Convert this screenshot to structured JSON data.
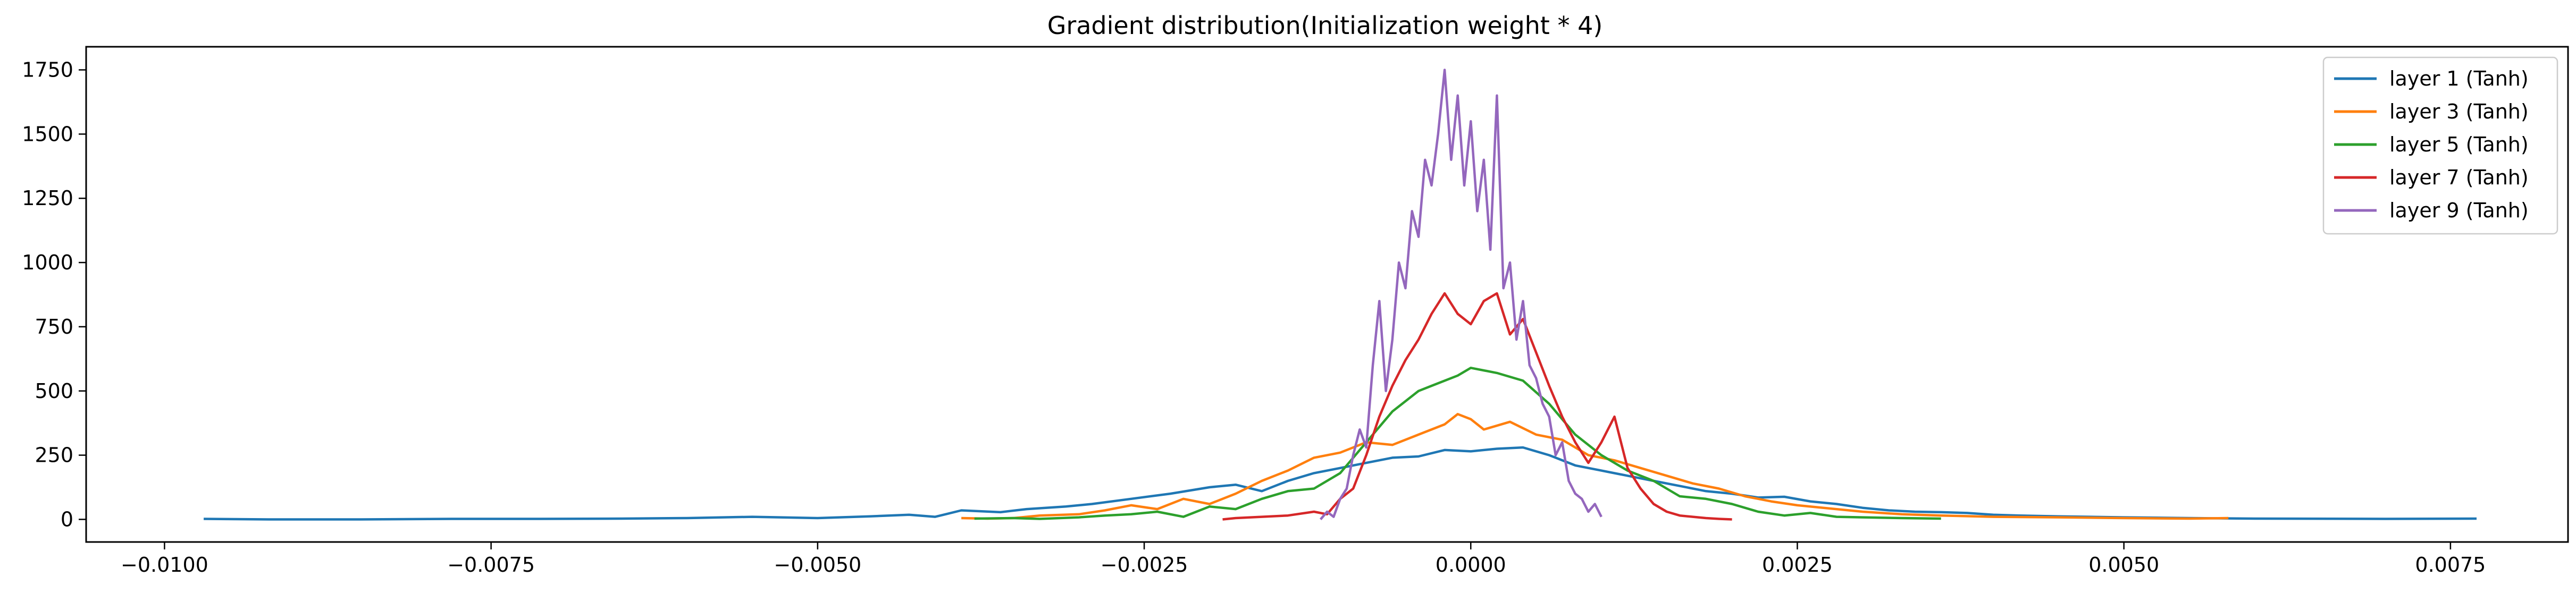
{
  "chart_data": {
    "type": "line",
    "title": "Gradient distribution(Initialization weight * 4)",
    "xlabel": "",
    "ylabel": "",
    "xlim": [
      -0.0106,
      0.0084
    ],
    "ylim": [
      -88,
      1840
    ],
    "xticks": [
      -0.01,
      -0.0075,
      -0.005,
      -0.0025,
      0.0,
      0.0025,
      0.005,
      0.0075
    ],
    "xtick_labels": [
      "−0.0100",
      "−0.0075",
      "−0.0050",
      "−0.0025",
      "0.0000",
      "0.0025",
      "0.0050",
      "0.0075"
    ],
    "yticks": [
      0,
      250,
      500,
      750,
      1000,
      1250,
      1500,
      1750
    ],
    "ytick_labels": [
      "0",
      "250",
      "500",
      "750",
      "1000",
      "1250",
      "1500",
      "1750"
    ],
    "grid": false,
    "legend_position": "upper right",
    "series": [
      {
        "name": "layer 1 (Tanh)",
        "color": "#1f77b4",
        "points": [
          [
            -0.0097,
            2
          ],
          [
            -0.0092,
            0
          ],
          [
            -0.0085,
            0
          ],
          [
            -0.0078,
            2
          ],
          [
            -0.0072,
            2
          ],
          [
            -0.0065,
            3
          ],
          [
            -0.006,
            5
          ],
          [
            -0.0055,
            10
          ],
          [
            -0.005,
            5
          ],
          [
            -0.0046,
            12
          ],
          [
            -0.0043,
            18
          ],
          [
            -0.0041,
            10
          ],
          [
            -0.0039,
            35
          ],
          [
            -0.0036,
            28
          ],
          [
            -0.0034,
            40
          ],
          [
            -0.0031,
            50
          ],
          [
            -0.0029,
            60
          ],
          [
            -0.0026,
            80
          ],
          [
            -0.0023,
            100
          ],
          [
            -0.002,
            125
          ],
          [
            -0.0018,
            135
          ],
          [
            -0.0016,
            110
          ],
          [
            -0.0014,
            150
          ],
          [
            -0.0012,
            180
          ],
          [
            -0.001,
            200
          ],
          [
            -0.0008,
            220
          ],
          [
            -0.0006,
            240
          ],
          [
            -0.0004,
            245
          ],
          [
            -0.0002,
            270
          ],
          [
            0.0,
            265
          ],
          [
            0.0002,
            275
          ],
          [
            0.0004,
            280
          ],
          [
            0.0006,
            250
          ],
          [
            0.0008,
            210
          ],
          [
            0.001,
            190
          ],
          [
            0.0012,
            170
          ],
          [
            0.0014,
            150
          ],
          [
            0.0016,
            130
          ],
          [
            0.0018,
            110
          ],
          [
            0.002,
            100
          ],
          [
            0.0022,
            85
          ],
          [
            0.0024,
            88
          ],
          [
            0.0026,
            70
          ],
          [
            0.0028,
            60
          ],
          [
            0.003,
            45
          ],
          [
            0.0032,
            35
          ],
          [
            0.0034,
            30
          ],
          [
            0.0036,
            28
          ],
          [
            0.0038,
            25
          ],
          [
            0.004,
            18
          ],
          [
            0.0042,
            15
          ],
          [
            0.0045,
            12
          ],
          [
            0.005,
            8
          ],
          [
            0.0055,
            5
          ],
          [
            0.006,
            3
          ],
          [
            0.007,
            2
          ],
          [
            0.0077,
            3
          ]
        ]
      },
      {
        "name": "layer 3 (Tanh)",
        "color": "#ff7f0e",
        "points": [
          [
            -0.0039,
            5
          ],
          [
            -0.0037,
            3
          ],
          [
            -0.0035,
            5
          ],
          [
            -0.0033,
            15
          ],
          [
            -0.003,
            20
          ],
          [
            -0.0028,
            35
          ],
          [
            -0.0026,
            55
          ],
          [
            -0.0024,
            40
          ],
          [
            -0.0022,
            80
          ],
          [
            -0.002,
            60
          ],
          [
            -0.0018,
            100
          ],
          [
            -0.0016,
            150
          ],
          [
            -0.0014,
            190
          ],
          [
            -0.0012,
            240
          ],
          [
            -0.001,
            260
          ],
          [
            -0.0008,
            300
          ],
          [
            -0.0006,
            290
          ],
          [
            -0.0004,
            330
          ],
          [
            -0.0002,
            370
          ],
          [
            -0.0001,
            410
          ],
          [
            0.0,
            390
          ],
          [
            0.0001,
            350
          ],
          [
            0.0003,
            380
          ],
          [
            0.0005,
            330
          ],
          [
            0.0007,
            310
          ],
          [
            0.0009,
            250
          ],
          [
            0.0011,
            230
          ],
          [
            0.0013,
            200
          ],
          [
            0.0015,
            170
          ],
          [
            0.0017,
            140
          ],
          [
            0.0019,
            120
          ],
          [
            0.0021,
            90
          ],
          [
            0.0023,
            70
          ],
          [
            0.0025,
            55
          ],
          [
            0.0027,
            45
          ],
          [
            0.003,
            30
          ],
          [
            0.0033,
            20
          ],
          [
            0.0036,
            15
          ],
          [
            0.004,
            10
          ],
          [
            0.0045,
            8
          ],
          [
            0.005,
            5
          ],
          [
            0.0055,
            3
          ],
          [
            0.0058,
            5
          ]
        ]
      },
      {
        "name": "layer 5 (Tanh)",
        "color": "#2ca02c",
        "points": [
          [
            -0.0038,
            3
          ],
          [
            -0.0035,
            5
          ],
          [
            -0.0033,
            2
          ],
          [
            -0.003,
            8
          ],
          [
            -0.0028,
            15
          ],
          [
            -0.0026,
            20
          ],
          [
            -0.0024,
            30
          ],
          [
            -0.0022,
            10
          ],
          [
            -0.002,
            50
          ],
          [
            -0.0018,
            40
          ],
          [
            -0.0016,
            80
          ],
          [
            -0.0014,
            110
          ],
          [
            -0.0012,
            120
          ],
          [
            -0.001,
            180
          ],
          [
            -0.0008,
            300
          ],
          [
            -0.0006,
            420
          ],
          [
            -0.0004,
            500
          ],
          [
            -0.0003,
            520
          ],
          [
            -0.0001,
            560
          ],
          [
            0.0,
            590
          ],
          [
            0.0002,
            570
          ],
          [
            0.0004,
            540
          ],
          [
            0.0006,
            450
          ],
          [
            0.0008,
            330
          ],
          [
            0.001,
            250
          ],
          [
            0.0012,
            190
          ],
          [
            0.0014,
            150
          ],
          [
            0.0016,
            90
          ],
          [
            0.0018,
            80
          ],
          [
            0.002,
            60
          ],
          [
            0.0022,
            30
          ],
          [
            0.0024,
            15
          ],
          [
            0.0026,
            25
          ],
          [
            0.0028,
            10
          ],
          [
            0.003,
            8
          ],
          [
            0.0033,
            5
          ],
          [
            0.0036,
            3
          ]
        ]
      },
      {
        "name": "layer 7 (Tanh)",
        "color": "#d62728",
        "points": [
          [
            -0.0019,
            0
          ],
          [
            -0.0018,
            5
          ],
          [
            -0.0016,
            10
          ],
          [
            -0.0014,
            15
          ],
          [
            -0.0012,
            30
          ],
          [
            -0.0011,
            20
          ],
          [
            -0.001,
            80
          ],
          [
            -0.0009,
            120
          ],
          [
            -0.0008,
            250
          ],
          [
            -0.0007,
            400
          ],
          [
            -0.0006,
            520
          ],
          [
            -0.0005,
            620
          ],
          [
            -0.0004,
            700
          ],
          [
            -0.0003,
            800
          ],
          [
            -0.0002,
            880
          ],
          [
            -0.0001,
            800
          ],
          [
            0.0,
            760
          ],
          [
            0.0001,
            850
          ],
          [
            0.0002,
            880
          ],
          [
            0.0003,
            720
          ],
          [
            0.0004,
            780
          ],
          [
            0.0005,
            650
          ],
          [
            0.0006,
            520
          ],
          [
            0.0007,
            400
          ],
          [
            0.0008,
            300
          ],
          [
            0.0009,
            220
          ],
          [
            0.001,
            300
          ],
          [
            0.0011,
            400
          ],
          [
            0.0012,
            200
          ],
          [
            0.0013,
            120
          ],
          [
            0.0014,
            60
          ],
          [
            0.0015,
            30
          ],
          [
            0.0016,
            15
          ],
          [
            0.0017,
            10
          ],
          [
            0.0018,
            5
          ],
          [
            0.0019,
            2
          ],
          [
            0.002,
            0
          ]
        ]
      },
      {
        "name": "layer 9 (Tanh)",
        "color": "#9467bd",
        "points": [
          [
            -0.00115,
            0
          ],
          [
            -0.0011,
            30
          ],
          [
            -0.00105,
            10
          ],
          [
            -0.001,
            80
          ],
          [
            -0.00095,
            120
          ],
          [
            -0.0009,
            250
          ],
          [
            -0.00085,
            350
          ],
          [
            -0.0008,
            280
          ],
          [
            -0.00075,
            600
          ],
          [
            -0.0007,
            850
          ],
          [
            -0.00065,
            500
          ],
          [
            -0.0006,
            700
          ],
          [
            -0.00055,
            1000
          ],
          [
            -0.0005,
            900
          ],
          [
            -0.00045,
            1200
          ],
          [
            -0.0004,
            1100
          ],
          [
            -0.00035,
            1400
          ],
          [
            -0.0003,
            1300
          ],
          [
            -0.00025,
            1500
          ],
          [
            -0.0002,
            1750
          ],
          [
            -0.00015,
            1400
          ],
          [
            -0.0001,
            1650
          ],
          [
            -5e-05,
            1300
          ],
          [
            0.0,
            1550
          ],
          [
            5e-05,
            1200
          ],
          [
            0.0001,
            1400
          ],
          [
            0.00015,
            1050
          ],
          [
            0.0002,
            1650
          ],
          [
            0.00025,
            900
          ],
          [
            0.0003,
            1000
          ],
          [
            0.00035,
            700
          ],
          [
            0.0004,
            850
          ],
          [
            0.00045,
            600
          ],
          [
            0.0005,
            550
          ],
          [
            0.00055,
            450
          ],
          [
            0.0006,
            400
          ],
          [
            0.00065,
            250
          ],
          [
            0.0007,
            300
          ],
          [
            0.00075,
            150
          ],
          [
            0.0008,
            100
          ],
          [
            0.00085,
            80
          ],
          [
            0.0009,
            30
          ],
          [
            0.00095,
            60
          ],
          [
            0.001,
            10
          ]
        ]
      }
    ]
  }
}
